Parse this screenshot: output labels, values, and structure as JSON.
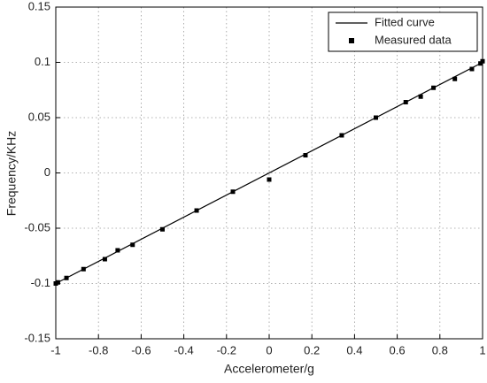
{
  "chart_data": {
    "type": "line",
    "x_label": "Accelerometer/g",
    "y_label": "Frequency/KHz",
    "xlim": [
      -1,
      1
    ],
    "xticks": [
      -1,
      -0.8,
      -0.6,
      -0.4,
      -0.2,
      0,
      0.2,
      0.4,
      0.6,
      0.8,
      1
    ],
    "ylim": [
      -0.15,
      0.15
    ],
    "yticks": [
      -0.15,
      -0.1,
      -0.05,
      0,
      0.05,
      0.1,
      0.15
    ],
    "grid": true,
    "legend": "upper right",
    "series": [
      {
        "name": "Fitted curve",
        "color": "#000000",
        "style": "line",
        "x": [
          -1,
          1
        ],
        "values": [
          -0.1,
          0.1
        ]
      },
      {
        "name": "Measured data",
        "color": "#000000",
        "style": "marker",
        "x": [
          -1,
          -0.99,
          -0.95,
          -0.87,
          -0.77,
          -0.71,
          -0.64,
          -0.5,
          -0.34,
          -0.17,
          0,
          0.17,
          0.34,
          0.5,
          0.64,
          0.71,
          0.77,
          0.87,
          0.95,
          0.99,
          1
        ],
        "values": [
          -0.1,
          -0.099,
          -0.095,
          -0.087,
          -0.078,
          -0.07,
          -0.065,
          -0.051,
          -0.034,
          -0.017,
          -0.006,
          0.016,
          0.034,
          0.05,
          0.064,
          0.069,
          0.077,
          0.085,
          0.094,
          0.099,
          0.101
        ]
      }
    ]
  }
}
